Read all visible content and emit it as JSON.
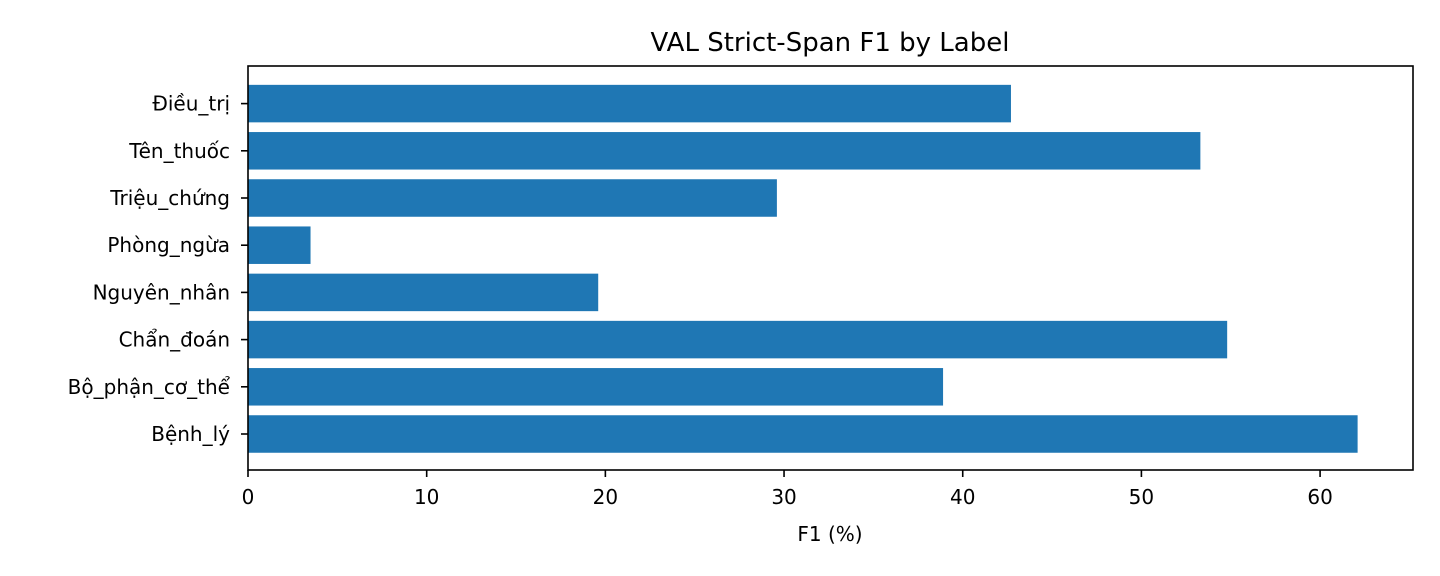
{
  "chart_data": {
    "type": "bar",
    "orientation": "horizontal",
    "title": "VAL Strict-Span F1 by Label",
    "xlabel": "F1 (%)",
    "ylabel": "",
    "categories": [
      "Bệnh_lý",
      "Bộ_phận_cơ_thể",
      "Chẩn_đoán",
      "Nguyên_nhân",
      "Phòng_ngừa",
      "Triệu_chứng",
      "Tên_thuốc",
      "Điều_trị"
    ],
    "values": [
      62.1,
      38.9,
      54.8,
      19.6,
      3.5,
      29.6,
      53.3,
      42.7
    ],
    "xlim": [
      0,
      65.2
    ],
    "xticks": [
      "0",
      "10",
      "20",
      "30",
      "40",
      "50",
      "60"
    ],
    "grid": false,
    "bar_color": "#1f77b4"
  }
}
